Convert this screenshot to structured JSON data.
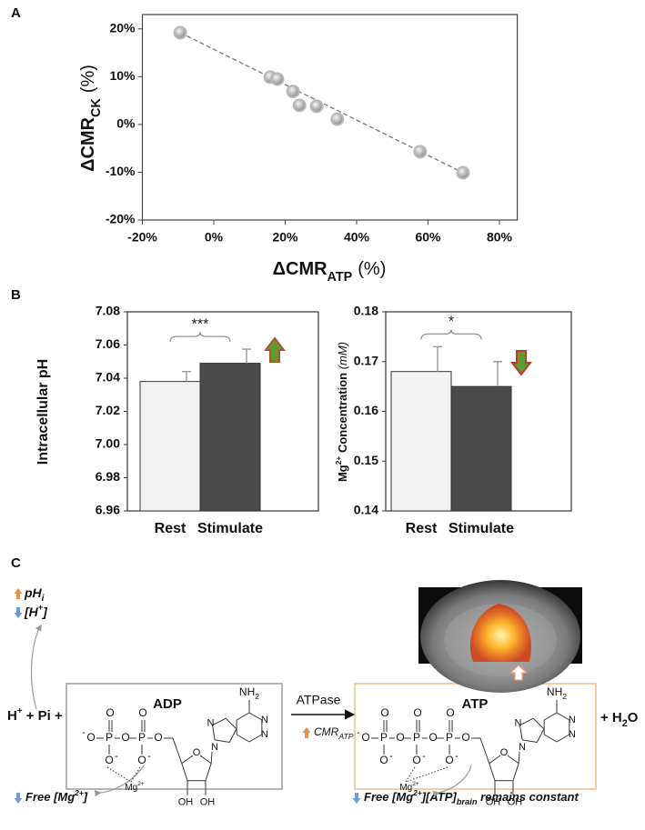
{
  "panels": {
    "a": "A",
    "b": "B",
    "c": "C"
  },
  "chart_data": [
    {
      "type": "scatter",
      "xlabel": {
        "main": "ΔCMR",
        "sub": "ATP",
        "unit": "(%)"
      },
      "ylabel": {
        "main": "ΔCMR",
        "sub": "CK",
        "unit": "(%)"
      },
      "x": [
        -9.4,
        15.8,
        17.8,
        22.2,
        24,
        28.8,
        34.6,
        57.8,
        69.8
      ],
      "values": [
        19.2,
        9.9,
        9.5,
        6.9,
        4,
        3.8,
        1.1,
        -5.7,
        -10.1
      ],
      "trendline": {
        "x": [
          -9.4,
          69.8
        ],
        "y": [
          19.2,
          -10.1
        ]
      },
      "color": "#b8b8b8",
      "xlim": [
        -20,
        85
      ],
      "ylim": [
        -20,
        23
      ],
      "xticks": [
        {
          "value": -20,
          "label": "-20%"
        },
        {
          "value": 0,
          "label": "0%"
        },
        {
          "value": 20,
          "label": "20%"
        },
        {
          "value": 40,
          "label": "40%"
        },
        {
          "value": 60,
          "label": "60%"
        },
        {
          "value": 80,
          "label": "80%"
        }
      ],
      "yticks": [
        {
          "value": -20,
          "label": "-20%"
        },
        {
          "value": -10,
          "label": "-10%"
        },
        {
          "value": 0,
          "label": "0%"
        },
        {
          "value": 10,
          "label": "10%"
        },
        {
          "value": 20,
          "label": "20%"
        }
      ]
    },
    {
      "type": "bar",
      "ylabel": "Intracellular pH",
      "categories": [
        "Rest",
        "Stimulate"
      ],
      "values": [
        7.038,
        7.049
      ],
      "errors": [
        0.006,
        0.0085
      ],
      "colors": [
        "#f2f2f2",
        "#4a4a4a"
      ],
      "label_colors": [
        "#555555",
        "#a31a24"
      ],
      "annotation": "***",
      "ylim": [
        6.96,
        7.08
      ],
      "yticks": [
        6.96,
        6.98,
        {
          "value": 7,
          "label": "7.00"
        },
        7.02,
        7.04,
        7.06,
        7.08
      ]
    },
    {
      "type": "bar",
      "ylabel": {
        "main": "Mg",
        "sup": "2+",
        "rest": " Concentration ",
        "unit": "(mM)"
      },
      "categories": [
        "Rest",
        "Stimulate"
      ],
      "values": [
        0.168,
        0.165
      ],
      "errors": [
        0.005,
        0.005
      ],
      "colors": [
        "#f2f2f2",
        "#4a4a4a"
      ],
      "label_colors": [
        "#555555",
        "#a31a24"
      ],
      "annotation": "*",
      "ylim": [
        0.14,
        0.18
      ],
      "yticks": [
        0.14,
        0.15,
        0.16,
        0.17,
        0.18
      ]
    }
  ],
  "diagram": {
    "ph": {
      "main": "pH",
      "sub": "i"
    },
    "h": {
      "open": "[H",
      "sup": "+",
      "close": "]"
    },
    "reactants": {
      "h": "H",
      "sup": "+",
      "rest": " + Pi +"
    },
    "adp": "ADP",
    "atp": "ATP",
    "enzyme": "ATPase",
    "cmr": {
      "main": "CMR",
      "sub": "ATP"
    },
    "water": {
      "main": "+ H",
      "sub": "2",
      "rest": "O"
    },
    "free_mg": {
      "main": "Free [Mg",
      "sup": "2+",
      "close": "]"
    },
    "constant": {
      "main": "[ATP]",
      "sub": "brain",
      "rest": " remains constant"
    },
    "atoms": {
      "O": "O",
      "P": "P",
      "OH": "OH",
      "N": "N",
      "NH": "NH",
      "two": "2",
      "Mg": "Mg",
      "charge": "2+",
      "minus": "-"
    }
  }
}
